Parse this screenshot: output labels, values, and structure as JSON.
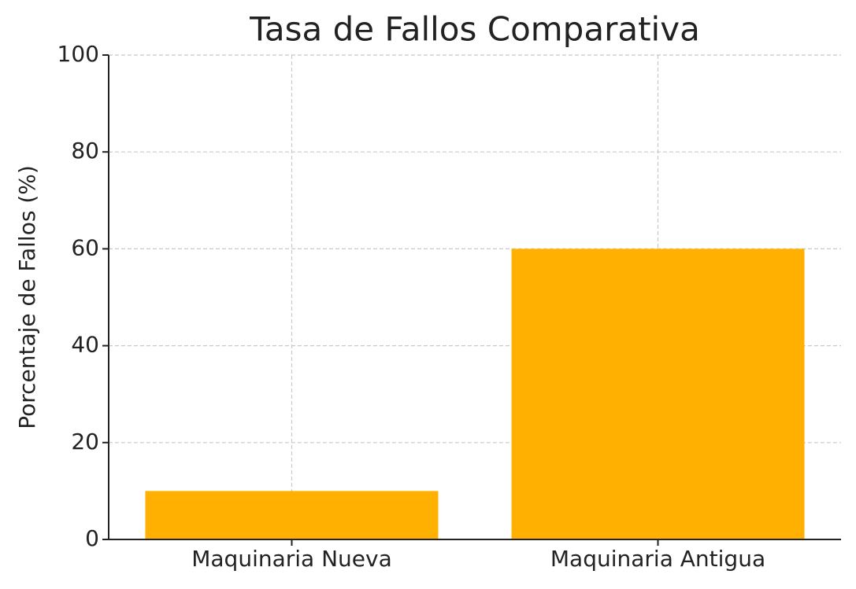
{
  "chart_data": {
    "type": "bar",
    "title": "Tasa de Fallos Comparativa",
    "ylabel": "Porcentaje de Fallos (%)",
    "categories": [
      "Maquinaria Nueva",
      "Maquinaria Antigua"
    ],
    "values": [
      10,
      60
    ],
    "color": "#ffb000",
    "ylim": [
      0,
      100
    ],
    "yticks": [
      0,
      20,
      40,
      60,
      80,
      100
    ],
    "grid": true
  }
}
